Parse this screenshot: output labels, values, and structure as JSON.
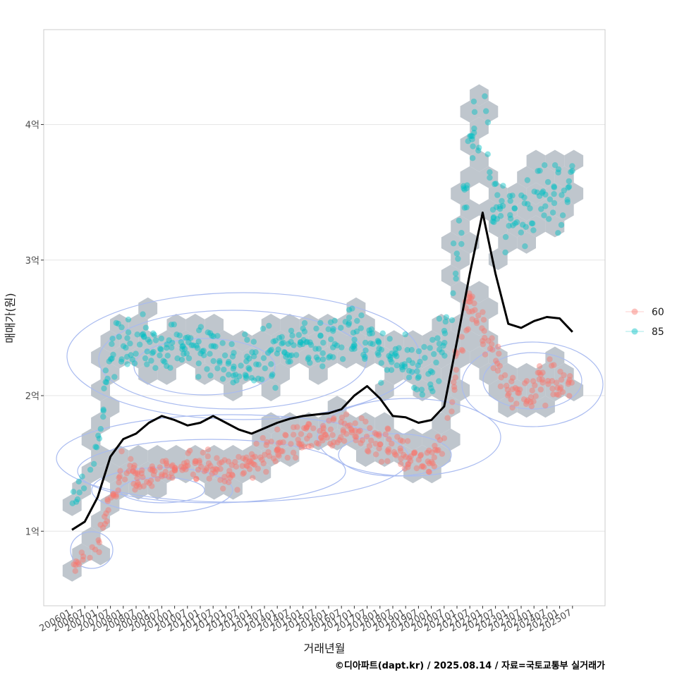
{
  "chart_data": {
    "type": "scatter",
    "xlabel": "거래년월",
    "ylabel": "매매가(원)",
    "caption": "©디아파트(dapt.kr) / 2025.08.14 / 자료=국토교통부 실거래가",
    "x_ticks": [
      "200601",
      "200607",
      "200701",
      "200707",
      "200801",
      "200807",
      "200901",
      "200907",
      "201001",
      "201007",
      "201101",
      "201107",
      "201201",
      "201207",
      "201301",
      "201307",
      "201401",
      "201407",
      "201501",
      "201507",
      "201601",
      "201607",
      "201701",
      "201707",
      "201801",
      "201807",
      "201901",
      "201907",
      "202001",
      "202007",
      "202101",
      "202107",
      "202201",
      "202207",
      "202301",
      "202307",
      "202401",
      "202407",
      "202501",
      "202507"
    ],
    "y_ticks": [
      {
        "value": 100000000,
        "label": "1억"
      },
      {
        "value": 200000000,
        "label": "2억"
      },
      {
        "value": 300000000,
        "label": "3억"
      },
      {
        "value": 400000000,
        "label": "4억"
      }
    ],
    "ylim": [
      45000000,
      470000000
    ],
    "grid": true,
    "legend_position": "right",
    "legend": [
      {
        "name": "60",
        "color": "#F8766D"
      },
      {
        "name": "85",
        "color": "#00BFC4"
      }
    ],
    "colors": {
      "hex": "#bcc3ca",
      "contour": "#a9bbf0",
      "trend": "#000000",
      "grid": "#e5e5e5",
      "panel_border": "#cccccc"
    },
    "series": [
      {
        "name": "60",
        "centers": [
          [
            "200601",
            75000000
          ],
          [
            "200701",
            88000000
          ],
          [
            "200707",
            125000000
          ],
          [
            "200801",
            148000000
          ],
          [
            "200807",
            140000000
          ],
          [
            "200901",
            138000000
          ],
          [
            "200907",
            150000000
          ],
          [
            "201001",
            145000000
          ],
          [
            "201007",
            148000000
          ],
          [
            "201101",
            147000000
          ],
          [
            "201107",
            150000000
          ],
          [
            "201201",
            142000000
          ],
          [
            "201207",
            145000000
          ],
          [
            "201301",
            150000000
          ],
          [
            "201307",
            155000000
          ],
          [
            "201401",
            160000000
          ],
          [
            "201407",
            165000000
          ],
          [
            "201501",
            168000000
          ],
          [
            "201507",
            170000000
          ],
          [
            "201601",
            172000000
          ],
          [
            "201607",
            175000000
          ],
          [
            "201701",
            178000000
          ],
          [
            "201707",
            172000000
          ],
          [
            "201801",
            165000000
          ],
          [
            "201807",
            160000000
          ],
          [
            "201901",
            155000000
          ],
          [
            "201907",
            150000000
          ],
          [
            "202001",
            155000000
          ],
          [
            "202007",
            165000000
          ],
          [
            "202101",
            225000000
          ],
          [
            "202107",
            275000000
          ],
          [
            "202201",
            250000000
          ],
          [
            "202207",
            230000000
          ],
          [
            "202301",
            205000000
          ],
          [
            "202307",
            200000000
          ],
          [
            "202401",
            205000000
          ],
          [
            "202407",
            210000000
          ],
          [
            "202501",
            210000000
          ],
          [
            "202507",
            205000000
          ]
        ]
      },
      {
        "name": "85",
        "centers": [
          [
            "200601",
            120000000
          ],
          [
            "200701",
            160000000
          ],
          [
            "200707",
            230000000
          ],
          [
            "200801",
            240000000
          ],
          [
            "200807",
            235000000
          ],
          [
            "200901",
            240000000
          ],
          [
            "200907",
            232000000
          ],
          [
            "201001",
            240000000
          ],
          [
            "201007",
            235000000
          ],
          [
            "201101",
            238000000
          ],
          [
            "201107",
            232000000
          ],
          [
            "201201",
            225000000
          ],
          [
            "201207",
            220000000
          ],
          [
            "201301",
            225000000
          ],
          [
            "201307",
            228000000
          ],
          [
            "201401",
            232000000
          ],
          [
            "201407",
            235000000
          ],
          [
            "201501",
            238000000
          ],
          [
            "201507",
            240000000
          ],
          [
            "201601",
            242000000
          ],
          [
            "201607",
            245000000
          ],
          [
            "201701",
            248000000
          ],
          [
            "201707",
            240000000
          ],
          [
            "201801",
            232000000
          ],
          [
            "201807",
            225000000
          ],
          [
            "201901",
            222000000
          ],
          [
            "201907",
            220000000
          ],
          [
            "202001",
            222000000
          ],
          [
            "202007",
            240000000
          ],
          [
            "202101",
            300000000
          ],
          [
            "202107",
            390000000
          ],
          [
            "202201",
            395000000
          ],
          [
            "202207",
            330000000
          ],
          [
            "202301",
            330000000
          ],
          [
            "202307",
            340000000
          ],
          [
            "202401",
            345000000
          ],
          [
            "202407",
            350000000
          ],
          [
            "202501",
            345000000
          ],
          [
            "202507",
            355000000
          ]
        ]
      }
    ],
    "trend": {
      "x": [
        "200601",
        "200607",
        "200701",
        "200707",
        "200801",
        "200807",
        "200901",
        "200907",
        "201001",
        "201007",
        "201101",
        "201107",
        "201201",
        "201207",
        "201301",
        "201307",
        "201401",
        "201407",
        "201501",
        "201507",
        "201601",
        "201607",
        "201701",
        "201707",
        "201801",
        "201807",
        "201901",
        "201907",
        "202001",
        "202007",
        "202101",
        "202107",
        "202201",
        "202207",
        "202301",
        "202307",
        "202401",
        "202407",
        "202501",
        "202507"
      ],
      "y": [
        101000000,
        107000000,
        125000000,
        155000000,
        168000000,
        172000000,
        180000000,
        185000000,
        182000000,
        178000000,
        180000000,
        185000000,
        180000000,
        175000000,
        172000000,
        176000000,
        180000000,
        183000000,
        185000000,
        186000000,
        187000000,
        190000000,
        200000000,
        207000000,
        198000000,
        185000000,
        184000000,
        180000000,
        182000000,
        192000000,
        240000000,
        290000000,
        335000000,
        290000000,
        253000000,
        250000000,
        255000000,
        258000000,
        257000000,
        247000000
      ]
    }
  }
}
